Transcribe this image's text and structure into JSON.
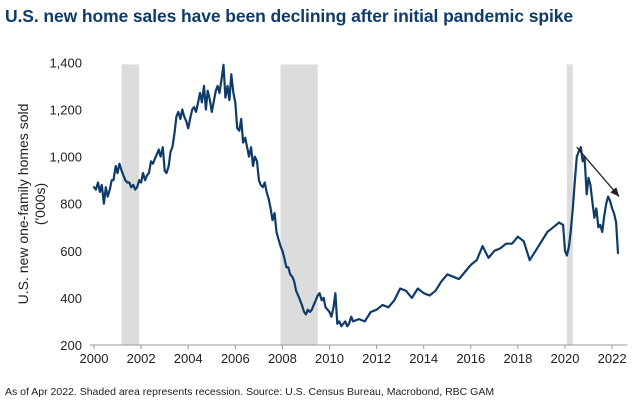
{
  "title": "U.S. new home sales have been declining after initial pandemic spike",
  "footnote": "As of Apr 2022. Shaded area represents recession. Source: U.S. Census Bureau, Macrobond, RBC GAM",
  "colors": {
    "title": "#0f3b69",
    "line": "#0f3b69",
    "recession": "#dcdcdc",
    "arrow": "#222222"
  },
  "chart_data": {
    "type": "line",
    "title": "U.S. new home sales have been declining after initial pandemic spike",
    "xlabel": "",
    "ylabel": "U.S. new one-family homes sold ('000s)",
    "ylabel_lines": [
      "U.S. new one-family homes sold",
      "('000s)"
    ],
    "xlim": [
      2000,
      2022.4
    ],
    "ylim": [
      200,
      1400
    ],
    "xticks": [
      2000,
      2002,
      2004,
      2006,
      2008,
      2010,
      2012,
      2014,
      2016,
      2018,
      2020,
      2022
    ],
    "xtick_labels": [
      "2000",
      "2002",
      "2004",
      "2006",
      "2008",
      "2010",
      "2012",
      "2014",
      "2016",
      "2018",
      "2020",
      "2022"
    ],
    "yticks": [
      200,
      400,
      600,
      800,
      1000,
      1200,
      1400
    ],
    "ytick_labels": [
      "200",
      "400",
      "600",
      "800",
      "1,000",
      "1,200",
      "1,400"
    ],
    "grid": false,
    "legend": "none",
    "recessions": [
      {
        "start": 2001.17,
        "end": 2001.92
      },
      {
        "start": 2007.92,
        "end": 2009.5
      },
      {
        "start": 2020.08,
        "end": 2020.33
      }
    ],
    "annotation": {
      "type": "arrow",
      "from": [
        2020.5,
        1040
      ],
      "to": [
        2022.3,
        830
      ],
      "meaning": "declining trend"
    },
    "series": [
      {
        "name": "U.S. new one-family homes sold",
        "x": [
          2000.0,
          2000.08,
          2000.17,
          2000.25,
          2000.33,
          2000.42,
          2000.5,
          2000.58,
          2000.67,
          2000.75,
          2000.83,
          2000.92,
          2001.0,
          2001.08,
          2001.17,
          2001.25,
          2001.33,
          2001.42,
          2001.5,
          2001.58,
          2001.67,
          2001.75,
          2001.83,
          2001.92,
          2002.0,
          2002.08,
          2002.17,
          2002.25,
          2002.33,
          2002.42,
          2002.5,
          2002.58,
          2002.67,
          2002.75,
          2002.83,
          2002.92,
          2003.0,
          2003.08,
          2003.17,
          2003.25,
          2003.33,
          2003.42,
          2003.5,
          2003.58,
          2003.67,
          2003.75,
          2003.83,
          2003.92,
          2004.0,
          2004.08,
          2004.17,
          2004.25,
          2004.33,
          2004.42,
          2004.5,
          2004.58,
          2004.67,
          2004.75,
          2004.83,
          2004.92,
          2005.0,
          2005.08,
          2005.17,
          2005.25,
          2005.33,
          2005.42,
          2005.5,
          2005.58,
          2005.67,
          2005.75,
          2005.83,
          2005.92,
          2006.0,
          2006.08,
          2006.17,
          2006.25,
          2006.33,
          2006.42,
          2006.5,
          2006.58,
          2006.67,
          2006.75,
          2006.83,
          2006.92,
          2007.0,
          2007.08,
          2007.17,
          2007.25,
          2007.33,
          2007.42,
          2007.5,
          2007.58,
          2007.67,
          2007.75,
          2007.83,
          2007.92,
          2008.0,
          2008.08,
          2008.17,
          2008.25,
          2008.33,
          2008.42,
          2008.5,
          2008.58,
          2008.67,
          2008.75,
          2008.83,
          2008.92,
          2009.0,
          2009.08,
          2009.17,
          2009.25,
          2009.33,
          2009.42,
          2009.5,
          2009.58,
          2009.67,
          2009.75,
          2009.83,
          2009.92,
          2010.0,
          2010.08,
          2010.17,
          2010.25,
          2010.33,
          2010.42,
          2010.5,
          2010.58,
          2010.67,
          2010.75,
          2010.83,
          2010.92,
          2011.0,
          2011.25,
          2011.5,
          2011.75,
          2012.0,
          2012.25,
          2012.5,
          2012.75,
          2013.0,
          2013.25,
          2013.5,
          2013.75,
          2014.0,
          2014.25,
          2014.5,
          2014.75,
          2015.0,
          2015.25,
          2015.5,
          2015.75,
          2016.0,
          2016.25,
          2016.5,
          2016.75,
          2017.0,
          2017.25,
          2017.5,
          2017.75,
          2018.0,
          2018.25,
          2018.5,
          2018.75,
          2019.0,
          2019.25,
          2019.5,
          2019.75,
          2019.92,
          2020.0,
          2020.08,
          2020.17,
          2020.25,
          2020.33,
          2020.42,
          2020.5,
          2020.58,
          2020.67,
          2020.75,
          2020.83,
          2020.92,
          2021.0,
          2021.08,
          2021.17,
          2021.25,
          2021.33,
          2021.42,
          2021.5,
          2021.58,
          2021.67,
          2021.75,
          2021.83,
          2021.92,
          2022.0,
          2022.08,
          2022.17,
          2022.25
        ],
        "values": [
          870,
          860,
          890,
          850,
          880,
          800,
          870,
          830,
          860,
          900,
          900,
          960,
          930,
          970,
          940,
          920,
          900,
          890,
          890,
          870,
          880,
          860,
          870,
          900,
          890,
          930,
          900,
          920,
          930,
          980,
          970,
          990,
          1010,
          1030,
          1000,
          1040,
          940,
          930,
          960,
          1020,
          1040,
          1100,
          1170,
          1190,
          1160,
          1200,
          1170,
          1150,
          1120,
          1160,
          1200,
          1210,
          1190,
          1230,
          1270,
          1230,
          1300,
          1200,
          1280,
          1240,
          1190,
          1230,
          1280,
          1300,
          1270,
          1330,
          1390,
          1250,
          1300,
          1240,
          1350,
          1270,
          1230,
          1120,
          1110,
          1160,
          1060,
          1080,
          1040,
          1000,
          1040,
          960,
          1000,
          980,
          900,
          880,
          870,
          890,
          850,
          820,
          780,
          730,
          760,
          680,
          650,
          620,
          600,
          570,
          530,
          530,
          500,
          490,
          470,
          430,
          410,
          390,
          370,
          340,
          330,
          350,
          340,
          350,
          370,
          390,
          410,
          420,
          390,
          400,
          360,
          350,
          340,
          320,
          360,
          420,
          290,
          300,
          280,
          290,
          300,
          280,
          290,
          320,
          300,
          310,
          300,
          340,
          350,
          370,
          360,
          390,
          440,
          430,
          400,
          440,
          420,
          410,
          430,
          470,
          500,
          490,
          480,
          510,
          540,
          560,
          620,
          570,
          600,
          610,
          630,
          630,
          660,
          640,
          560,
          600,
          640,
          680,
          700,
          720,
          710,
          600,
          580,
          620,
          690,
          780,
          900,
          1000,
          1020,
          1040,
          980,
          1000,
          840,
          910,
          880,
          800,
          740,
          780,
          700,
          710,
          680,
          750,
          800,
          830,
          810,
          780,
          760,
          720,
          590
        ]
      }
    ]
  }
}
